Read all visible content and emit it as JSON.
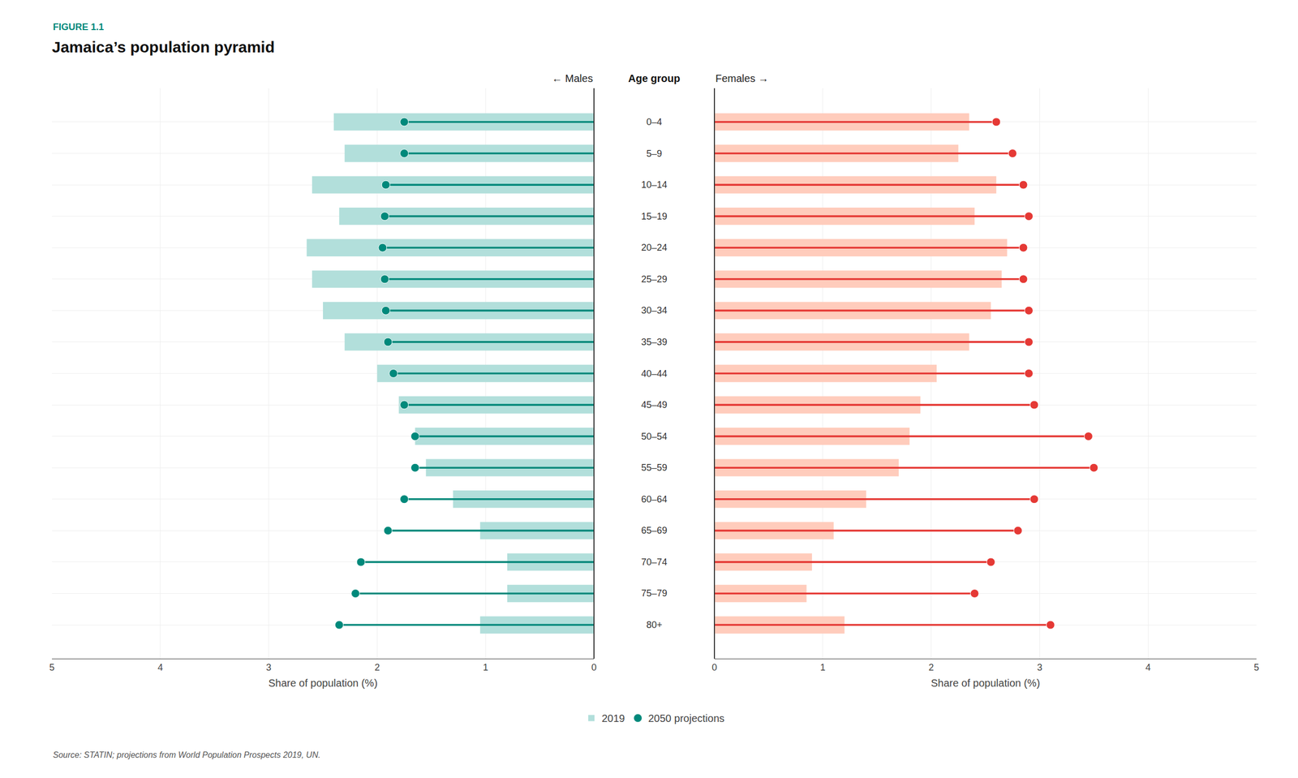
{
  "chart_data": [
    {
      "type": "bar",
      "orientation": "horizontal",
      "title": "Jamaica’s population pyramid",
      "annotations": [
        "FIGURE 1.1",
        "← Males",
        "Source: STATIN; projections from World Population Prospects 2019, UN."
      ],
      "ylabel": "Age group",
      "xlabel": "Share of population (%)",
      "categories": [
        "80+",
        "75–79",
        "70–74",
        "65–69",
        "60–64",
        "55–59",
        "50–54",
        "45–49",
        "40–44",
        "35–39",
        "30–34",
        "25–29",
        "20–24",
        "15–19",
        "10–14",
        "5–9",
        "0–4"
      ],
      "series": [
        {
          "name": "2019",
          "type": "bar",
          "color": "#b2dfdb",
          "values": [
            1.05,
            0.8,
            0.8,
            1.05,
            1.3,
            1.55,
            1.65,
            1.8,
            2.0,
            2.3,
            2.5,
            2.6,
            2.65,
            2.35,
            2.6,
            2.3,
            2.4
          ]
        },
        {
          "name": "2050 projections",
          "type": "lollipop",
          "marker": "circle",
          "color": "#00897b",
          "values": [
            2.35,
            2.2,
            2.15,
            1.9,
            1.75,
            1.65,
            1.65,
            1.75,
            1.85,
            1.9,
            1.92,
            1.93,
            1.95,
            1.93,
            1.92,
            1.75,
            1.75
          ]
        }
      ],
      "xlim": [
        0,
        5
      ],
      "xticks": [
        0,
        1,
        2,
        3,
        4,
        5
      ],
      "grid": true,
      "legend": "bottom"
    },
    {
      "type": "bar",
      "orientation": "horizontal",
      "annotations": [
        "Females →"
      ],
      "xlabel": "Share of population (%)",
      "categories": [
        "80+",
        "75–79",
        "70–74",
        "65–69",
        "60–64",
        "55–59",
        "50–54",
        "45–49",
        "40–44",
        "35–39",
        "30–34",
        "25–29",
        "20–24",
        "15–19",
        "10–14",
        "5–9",
        "0–4"
      ],
      "series": [
        {
          "name": "2019",
          "type": "bar",
          "color": "#ffccbc",
          "values": [
            1.2,
            0.85,
            0.9,
            1.1,
            1.4,
            1.7,
            1.8,
            1.9,
            2.05,
            2.35,
            2.55,
            2.65,
            2.7,
            2.4,
            2.6,
            2.25,
            2.35
          ]
        },
        {
          "name": "2050 projections",
          "type": "lollipop",
          "marker": "circle",
          "color": "#e53935",
          "values": [
            3.1,
            2.4,
            2.55,
            2.8,
            2.95,
            3.5,
            3.45,
            2.95,
            2.9,
            2.9,
            2.9,
            2.85,
            2.85,
            2.9,
            2.85,
            2.75,
            2.6
          ]
        }
      ],
      "xlim": [
        0,
        5
      ],
      "xticks": [
        0,
        1,
        2,
        3,
        4,
        5
      ],
      "grid": true
    }
  ]
}
